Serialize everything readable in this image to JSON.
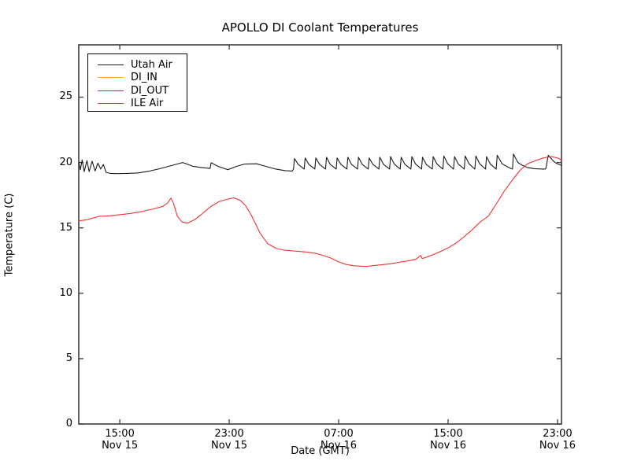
{
  "figure": {
    "title": "APOLLO DI Coolant Temperatures",
    "background_color": "#ffffff",
    "axis_color": "#3b3b3b",
    "text_color": "#000000"
  },
  "chart_data": {
    "type": "line",
    "title": "APOLLO DI Coolant Temperatures",
    "xlabel": "Date (GMT)",
    "ylabel": "Temperature (C)",
    "x_unit": "hours after Nov 15 12:00 GMT",
    "xlim": [
      0,
      35.29
    ],
    "ylim": [
      0,
      29.0
    ],
    "grid": false,
    "ticks_direction": "in",
    "legend_position": "upper left",
    "yticks": [
      0,
      5,
      10,
      15,
      20,
      25
    ],
    "xticks": [
      {
        "t": 3,
        "time": "15:00",
        "date": "Nov 15"
      },
      {
        "t": 11,
        "time": "23:00",
        "date": "Nov 15"
      },
      {
        "t": 19,
        "time": "07:00",
        "date": "Nov 16"
      },
      {
        "t": 27,
        "time": "15:00",
        "date": "Nov 16"
      },
      {
        "t": 35,
        "time": "23:00",
        "date": "Nov 16"
      }
    ],
    "series": [
      {
        "name": "Utah Air",
        "color": "#1a1a1a",
        "points": [
          [
            0.0,
            20.05
          ],
          [
            0.12,
            19.45
          ],
          [
            0.25,
            20.2
          ],
          [
            0.4,
            19.3
          ],
          [
            0.6,
            20.15
          ],
          [
            0.76,
            19.3
          ],
          [
            0.98,
            20.1
          ],
          [
            1.2,
            19.35
          ],
          [
            1.4,
            19.95
          ],
          [
            1.6,
            19.5
          ],
          [
            1.8,
            19.85
          ],
          [
            2.0,
            19.25
          ],
          [
            2.3,
            19.17
          ],
          [
            2.9,
            19.15
          ],
          [
            3.5,
            19.17
          ],
          [
            4.3,
            19.2
          ],
          [
            5.2,
            19.35
          ],
          [
            6.0,
            19.55
          ],
          [
            6.9,
            19.8
          ],
          [
            7.6,
            20.0
          ],
          [
            8.4,
            19.7
          ],
          [
            9.1,
            19.6
          ],
          [
            9.6,
            19.55
          ],
          [
            9.68,
            19.98
          ],
          [
            10.2,
            19.7
          ],
          [
            10.9,
            19.45
          ],
          [
            11.5,
            19.7
          ],
          [
            12.1,
            19.88
          ],
          [
            13.0,
            19.9
          ],
          [
            13.7,
            19.7
          ],
          [
            14.4,
            19.5
          ],
          [
            15.1,
            19.38
          ],
          [
            15.6,
            19.35
          ],
          [
            15.7,
            19.5
          ],
          [
            15.77,
            20.3
          ],
          [
            16.05,
            19.85
          ],
          [
            16.42,
            19.55
          ],
          [
            16.48,
            19.5
          ],
          [
            16.55,
            20.35
          ],
          [
            16.83,
            19.85
          ],
          [
            17.2,
            19.55
          ],
          [
            17.26,
            19.5
          ],
          [
            17.33,
            20.35
          ],
          [
            17.61,
            19.85
          ],
          [
            17.98,
            19.55
          ],
          [
            18.04,
            19.5
          ],
          [
            18.11,
            20.4
          ],
          [
            18.39,
            19.85
          ],
          [
            18.76,
            19.55
          ],
          [
            18.82,
            19.5
          ],
          [
            18.89,
            20.35
          ],
          [
            19.17,
            19.85
          ],
          [
            19.54,
            19.55
          ],
          [
            19.6,
            19.5
          ],
          [
            19.67,
            20.4
          ],
          [
            19.95,
            19.85
          ],
          [
            20.32,
            19.55
          ],
          [
            20.38,
            19.5
          ],
          [
            20.45,
            20.4
          ],
          [
            20.73,
            19.85
          ],
          [
            21.1,
            19.55
          ],
          [
            21.16,
            19.5
          ],
          [
            21.23,
            20.35
          ],
          [
            21.51,
            19.85
          ],
          [
            21.88,
            19.55
          ],
          [
            21.94,
            19.5
          ],
          [
            22.01,
            20.4
          ],
          [
            22.29,
            19.85
          ],
          [
            22.66,
            19.55
          ],
          [
            22.72,
            19.5
          ],
          [
            22.79,
            20.45
          ],
          [
            23.07,
            19.88
          ],
          [
            23.44,
            19.55
          ],
          [
            23.5,
            19.5
          ],
          [
            23.57,
            20.4
          ],
          [
            23.85,
            19.85
          ],
          [
            24.22,
            19.55
          ],
          [
            24.28,
            19.5
          ],
          [
            24.35,
            20.45
          ],
          [
            24.63,
            19.88
          ],
          [
            25.0,
            19.55
          ],
          [
            25.06,
            19.5
          ],
          [
            25.13,
            20.4
          ],
          [
            25.41,
            19.85
          ],
          [
            25.78,
            19.55
          ],
          [
            25.84,
            19.5
          ],
          [
            25.91,
            20.45
          ],
          [
            26.19,
            19.88
          ],
          [
            26.56,
            19.55
          ],
          [
            26.62,
            19.5
          ],
          [
            26.69,
            20.5
          ],
          [
            26.97,
            19.9
          ],
          [
            27.34,
            19.55
          ],
          [
            27.4,
            19.5
          ],
          [
            27.47,
            20.45
          ],
          [
            27.75,
            19.88
          ],
          [
            28.12,
            19.55
          ],
          [
            28.18,
            19.5
          ],
          [
            28.25,
            20.5
          ],
          [
            28.53,
            19.9
          ],
          [
            28.9,
            19.55
          ],
          [
            28.96,
            19.5
          ],
          [
            29.03,
            20.5
          ],
          [
            29.31,
            19.9
          ],
          [
            29.68,
            19.55
          ],
          [
            29.74,
            19.5
          ],
          [
            29.81,
            20.45
          ],
          [
            30.09,
            19.88
          ],
          [
            30.46,
            19.55
          ],
          [
            30.52,
            19.5
          ],
          [
            30.59,
            20.55
          ],
          [
            30.95,
            19.9
          ],
          [
            31.3,
            19.7
          ],
          [
            31.64,
            19.52
          ],
          [
            31.71,
            19.5
          ],
          [
            31.78,
            20.65
          ],
          [
            32.1,
            20.0
          ],
          [
            32.4,
            19.8
          ],
          [
            32.8,
            19.62
          ],
          [
            33.3,
            19.53
          ],
          [
            33.9,
            19.5
          ],
          [
            34.1,
            19.5
          ],
          [
            34.15,
            19.55
          ],
          [
            34.32,
            20.55
          ],
          [
            34.7,
            20.1
          ],
          [
            34.95,
            19.92
          ],
          [
            35.29,
            19.78
          ]
        ]
      },
      {
        "name": "DI_IN",
        "color": "#ffaa33",
        "points": []
      },
      {
        "name": "DI_OUT",
        "color": "#993399",
        "points": []
      },
      {
        "name": "ILE Air",
        "color": "#ee3333",
        "points": [
          [
            0.0,
            15.54
          ],
          [
            0.6,
            15.62
          ],
          [
            1.05,
            15.75
          ],
          [
            1.45,
            15.88
          ],
          [
            2.2,
            15.92
          ],
          [
            2.9,
            16.0
          ],
          [
            3.75,
            16.1
          ],
          [
            4.6,
            16.25
          ],
          [
            5.45,
            16.45
          ],
          [
            6.15,
            16.65
          ],
          [
            6.5,
            16.9
          ],
          [
            6.73,
            17.28
          ],
          [
            6.92,
            16.9
          ],
          [
            7.2,
            15.9
          ],
          [
            7.55,
            15.45
          ],
          [
            7.95,
            15.36
          ],
          [
            8.5,
            15.65
          ],
          [
            9.1,
            16.14
          ],
          [
            9.65,
            16.63
          ],
          [
            10.25,
            17.0
          ],
          [
            10.8,
            17.18
          ],
          [
            11.35,
            17.3
          ],
          [
            11.8,
            17.1
          ],
          [
            12.2,
            16.7
          ],
          [
            12.65,
            15.9
          ],
          [
            13.25,
            14.6
          ],
          [
            13.8,
            13.8
          ],
          [
            14.4,
            13.45
          ],
          [
            14.95,
            13.3
          ],
          [
            15.55,
            13.25
          ],
          [
            16.1,
            13.2
          ],
          [
            16.7,
            13.15
          ],
          [
            17.25,
            13.07
          ],
          [
            17.85,
            12.9
          ],
          [
            18.4,
            12.7
          ],
          [
            19.0,
            12.4
          ],
          [
            19.55,
            12.2
          ],
          [
            20.15,
            12.1
          ],
          [
            21.0,
            12.05
          ],
          [
            21.85,
            12.15
          ],
          [
            22.75,
            12.25
          ],
          [
            23.6,
            12.4
          ],
          [
            24.2,
            12.5
          ],
          [
            24.65,
            12.6
          ],
          [
            25.0,
            12.9
          ],
          [
            25.1,
            12.65
          ],
          [
            25.45,
            12.78
          ],
          [
            25.9,
            12.95
          ],
          [
            26.45,
            13.2
          ],
          [
            27.05,
            13.5
          ],
          [
            27.6,
            13.85
          ],
          [
            28.2,
            14.35
          ],
          [
            28.8,
            14.9
          ],
          [
            29.35,
            15.45
          ],
          [
            29.95,
            15.9
          ],
          [
            30.5,
            16.8
          ],
          [
            31.1,
            17.8
          ],
          [
            31.65,
            18.6
          ],
          [
            32.25,
            19.4
          ],
          [
            32.8,
            19.9
          ],
          [
            33.4,
            20.15
          ],
          [
            33.95,
            20.35
          ],
          [
            34.55,
            20.45
          ],
          [
            35.0,
            20.35
          ],
          [
            35.29,
            20.2
          ]
        ]
      }
    ]
  }
}
